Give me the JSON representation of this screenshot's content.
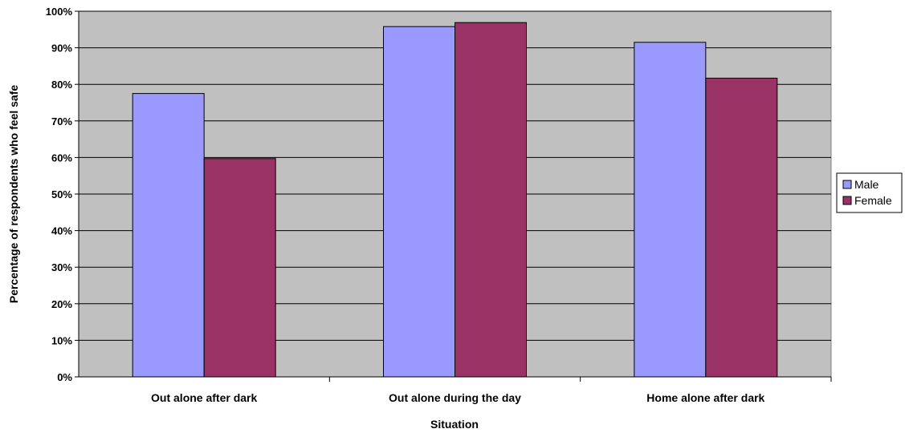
{
  "chart_data": {
    "type": "bar",
    "title": "",
    "xlabel": "Situation",
    "ylabel": "Percentage of respondents who feel safe",
    "categories": [
      "Out alone after dark",
      "Out alone during the day",
      "Home alone after dark"
    ],
    "series": [
      {
        "name": "Male",
        "values": [
          77.5,
          95.8,
          91.5
        ],
        "color": "#9999ff"
      },
      {
        "name": "Female",
        "values": [
          59.7,
          96.9,
          81.7
        ],
        "color": "#993366"
      }
    ],
    "ylim": [
      0,
      100
    ],
    "yticks": [
      "0%",
      "10%",
      "20%",
      "30%",
      "40%",
      "50%",
      "60%",
      "70%",
      "80%",
      "90%",
      "100%"
    ],
    "grid": true,
    "legend": "right",
    "plot_background": "#c0c0c0"
  }
}
